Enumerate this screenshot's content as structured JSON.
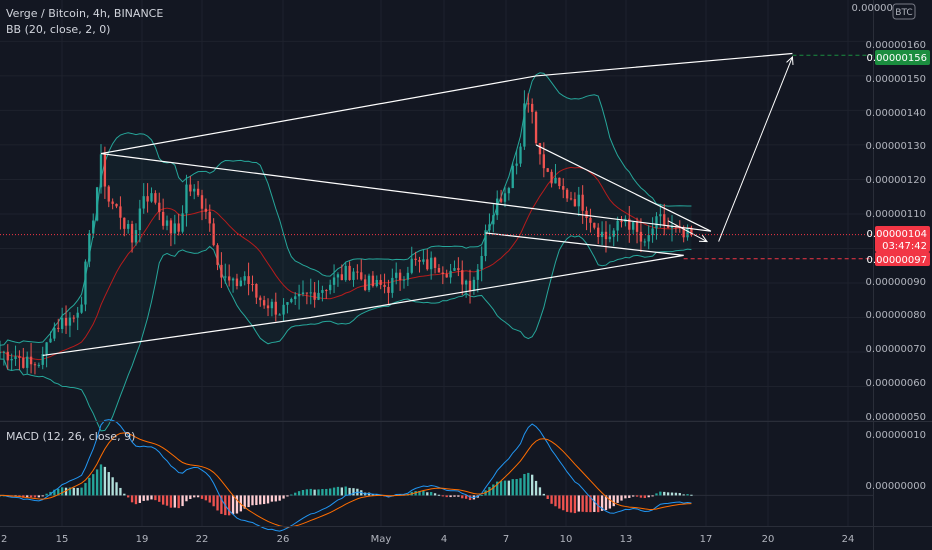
{
  "legend": {
    "symbol": "Verge / Bitcoin, 4h, BINANCE",
    "bb": "BB (20, close, 2, 0)",
    "macd": "MACD (12, 26, close, 9)"
  },
  "currency_badge": "BTC",
  "colors": {
    "background": "#131722",
    "grid": "#1e222d",
    "up": "#26a69a",
    "down": "#ef5350",
    "bb_band": "#26a69a",
    "bb_basis": "#b71c1c",
    "macd_line": "#2196f3",
    "signal_line": "#ff6d00",
    "drawing": "#ffffff",
    "target_tag": "#1b8e3f",
    "price_tag": "#f23645"
  },
  "chart_data": {
    "type": "candlestick",
    "price_axis": {
      "ylim": [
        5e-07,
        1.72e-06
      ],
      "ticks": [
        "0.00000050",
        "0.00000060",
        "0.00000070",
        "0.00000080",
        "0.00000090",
        "0.00000100",
        "0.00000110",
        "0.00000120",
        "0.00000130",
        "0.00000140",
        "0.00000150",
        "0.00000160"
      ],
      "top_tick_partial": "0.00000170"
    },
    "x_axis": {
      "labels": [
        "2",
        "15",
        "19",
        "22",
        "26",
        "May",
        "4",
        "7",
        "10",
        "13",
        "17",
        "20",
        "24"
      ],
      "xlim": [
        0,
        225
      ]
    },
    "price_labels": {
      "target": "0.00000156",
      "current": "0.00000104",
      "countdown": "03:47:42",
      "support": "0.00000097"
    },
    "drawings": {
      "channel_upper": [
        [
          26,
          1.275e-06
        ],
        [
          138,
          1.5e-06
        ],
        [
          204,
          1.565e-06
        ]
      ],
      "channel_lower": [
        [
          11,
          6.9e-07
        ],
        [
          80,
          8e-07
        ],
        [
          176,
          9.8e-07
        ]
      ],
      "descending_line": [
        [
          26,
          1.275e-06
        ],
        [
          183,
          1.05e-06
        ]
      ],
      "pennant_upper": [
        [
          138,
          1.3e-06
        ],
        [
          183,
          1.05e-06
        ]
      ],
      "pennant_lower": [
        [
          125,
          1.045e-06
        ],
        [
          176,
          9.8e-07
        ]
      ],
      "arrow_projection": [
        [
          185,
          1.02e-06
        ],
        [
          204,
          1.555e-06
        ]
      ],
      "small_arrow": [
        [
          172,
          1.08e-06
        ],
        [
          182,
          1.02e-06
        ]
      ]
    },
    "macd_axis": {
      "ticks": [
        "0.00000010",
        "0.00000000"
      ],
      "ylim": [
        -5e-08,
        1.2e-07
      ]
    }
  }
}
